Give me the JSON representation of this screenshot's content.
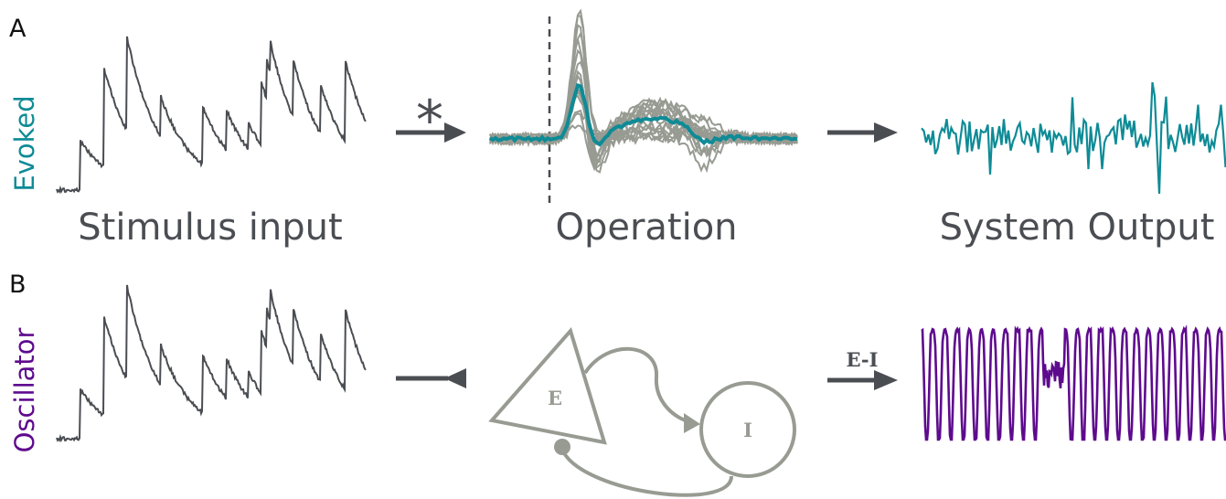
{
  "panels": {
    "a": "A",
    "b": "B"
  },
  "rows": {
    "evoked": "Evoked",
    "oscillator": "Oscillator"
  },
  "columns": {
    "input": "Stimulus input",
    "operation": "Operation",
    "output": "System Output"
  },
  "symbols": {
    "convolution": "*",
    "ei_arrow": "E-I"
  },
  "nodes": {
    "excitatory": "E",
    "inhibitory": "I"
  },
  "colors": {
    "input_trace": "#4a4d52",
    "arrow": "#4a4d52",
    "evoked": "#0e8b96",
    "oscillator": "#5e0a8e",
    "trials": "#979b92",
    "network": "#979b92"
  }
}
